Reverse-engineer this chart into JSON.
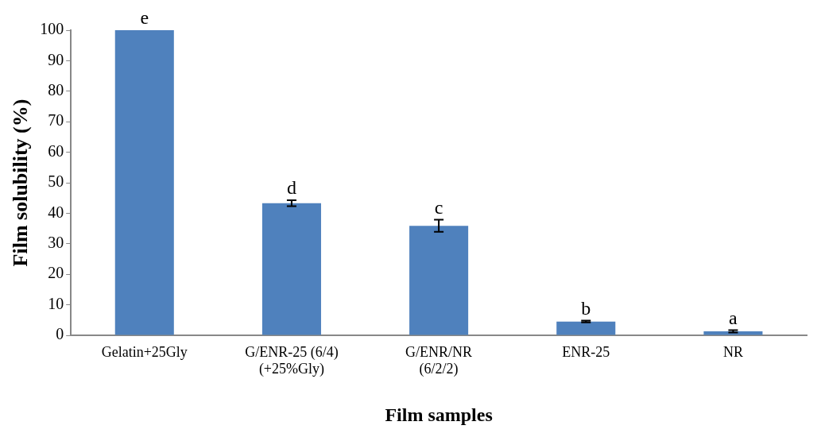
{
  "chart_data": {
    "type": "bar",
    "xlabel": "Film samples",
    "ylabel": "Film solubility (%)",
    "categories": [
      "Gelatin+25Gly",
      "G/ENR-25 (6/4)\n(+25%Gly)",
      "G/ENR/NR\n(6/2/2)",
      "ENR-25",
      "NR"
    ],
    "values": [
      100,
      43.3,
      35.9,
      4.5,
      1.3
    ],
    "errors": [
      null,
      1,
      2,
      0.3,
      0.4
    ],
    "color": "#4f81bd",
    "ylim": [
      0,
      100
    ],
    "yticks": [
      0,
      10,
      20,
      30,
      40,
      50,
      60,
      70,
      80,
      90,
      100
    ],
    "grid": false,
    "annotations": [
      {
        "text": "e",
        "x": "Gelatin+25Gly",
        "y": 100
      },
      {
        "text": "d",
        "x": "G/ENR-25 (6/4)\n(+25%Gly)",
        "y": 44.3
      },
      {
        "text": "c",
        "x": "G/ENR/NR\n(6/2/2)",
        "y": 37.9
      },
      {
        "text": "b",
        "x": "ENR-25",
        "y": 4.8
      },
      {
        "text": "a",
        "x": "NR",
        "y": 1.7
      }
    ]
  }
}
